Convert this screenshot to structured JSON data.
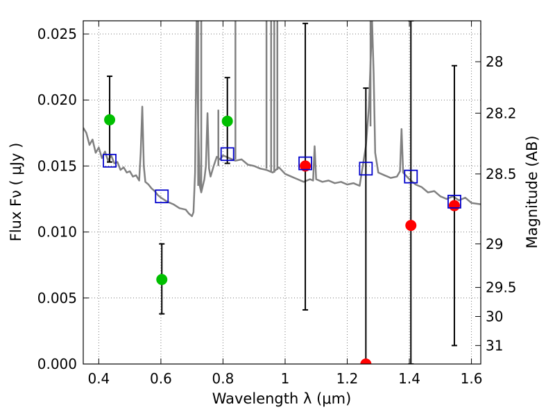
{
  "chart_data": {
    "type": "scatter",
    "title": "",
    "xlabel": "Wavelength  λ (μm)",
    "ylabel": "Flux  Fν  ( μJy )",
    "y2label": "Magnitude (AB)",
    "xlim": [
      0.35,
      1.63
    ],
    "ylim": [
      0,
      0.026
    ],
    "grid": true,
    "xticks": [
      0.4,
      0.6,
      0.8,
      1.0,
      1.2,
      1.4,
      1.6
    ],
    "xtick_labels": [
      "0.4",
      "0.6",
      "0.8",
      "1",
      "1.2",
      "1.4",
      "1.6"
    ],
    "yticks": [
      0,
      0.005,
      0.01,
      0.015,
      0.02,
      0.025
    ],
    "ytick_labels": [
      "0.000",
      "0.005",
      "0.010",
      "0.015",
      "0.020",
      "0.025"
    ],
    "y2ticks": [
      {
        "label": "28",
        "flux": 0.0229
      },
      {
        "label": "28.2",
        "flux": 0.019
      },
      {
        "label": "28.5",
        "flux": 0.0144
      },
      {
        "label": "29",
        "flux": 0.0091
      },
      {
        "label": "29.5",
        "flux": 0.0058
      },
      {
        "label": "30",
        "flux": 0.0036
      },
      {
        "label": "31",
        "flux": 0.0014
      }
    ],
    "colors": {
      "model": "#808080",
      "detected": "#00bf00",
      "upper_limit": "#ff0000",
      "model_band": "#0000cc",
      "errorbar": "#000000",
      "grid": "#777777"
    },
    "series": [
      {
        "name": "model spectrum",
        "type": "line",
        "x": [
          0.35,
          0.36,
          0.37,
          0.38,
          0.39,
          0.4,
          0.41,
          0.42,
          0.43,
          0.44,
          0.45,
          0.46,
          0.47,
          0.48,
          0.49,
          0.5,
          0.51,
          0.52,
          0.53,
          0.535,
          0.54,
          0.545,
          0.55,
          0.56,
          0.57,
          0.58,
          0.59,
          0.6,
          0.62,
          0.64,
          0.66,
          0.68,
          0.69,
          0.7,
          0.705,
          0.71,
          0.715,
          0.72,
          0.725,
          0.73,
          0.74,
          0.745,
          0.75,
          0.755,
          0.76,
          0.77,
          0.78,
          0.79,
          0.8,
          0.82,
          0.84,
          0.86,
          0.88,
          0.9,
          0.92,
          0.94,
          0.96,
          0.98,
          1.0,
          1.02,
          1.04,
          1.06,
          1.08,
          1.09,
          1.095,
          1.1,
          1.12,
          1.14,
          1.16,
          1.18,
          1.2,
          1.22,
          1.24,
          1.25,
          1.26,
          1.27,
          1.28,
          1.285,
          1.29,
          1.3,
          1.32,
          1.34,
          1.36,
          1.37,
          1.375,
          1.38,
          1.4,
          1.42,
          1.44,
          1.46,
          1.48,
          1.5,
          1.52,
          1.54,
          1.56,
          1.58,
          1.6,
          1.63
        ],
        "y": [
          0.0179,
          0.0175,
          0.0166,
          0.017,
          0.016,
          0.0164,
          0.0156,
          0.0161,
          0.0154,
          0.0158,
          0.0152,
          0.0153,
          0.0147,
          0.0149,
          0.0145,
          0.0146,
          0.0142,
          0.0143,
          0.0139,
          0.016,
          0.0195,
          0.015,
          0.0138,
          0.0136,
          0.0133,
          0.0131,
          0.0128,
          0.0126,
          0.0123,
          0.0121,
          0.0118,
          0.0117,
          0.0114,
          0.0112,
          0.0115,
          0.0145,
          0.026,
          0.018,
          0.0135,
          0.013,
          0.014,
          0.015,
          0.019,
          0.0148,
          0.0142,
          0.015,
          0.0157,
          0.0155,
          0.0158,
          0.0156,
          0.0154,
          0.0155,
          0.0151,
          0.015,
          0.0148,
          0.0147,
          0.0145,
          0.0149,
          0.0144,
          0.0142,
          0.014,
          0.0138,
          0.014,
          0.0139,
          0.0165,
          0.014,
          0.0138,
          0.0139,
          0.0137,
          0.0138,
          0.0136,
          0.0137,
          0.0135,
          0.015,
          0.0165,
          0.0195,
          0.026,
          0.022,
          0.016,
          0.0145,
          0.0143,
          0.0141,
          0.0142,
          0.0146,
          0.0178,
          0.0145,
          0.014,
          0.0136,
          0.0134,
          0.013,
          0.0131,
          0.0127,
          0.0125,
          0.0127,
          0.0124,
          0.0126,
          0.0122,
          0.0121
        ]
      },
      {
        "name": "model emission spikes",
        "type": "spikes",
        "lines": [
          {
            "x": 0.72,
            "base": 0.0135,
            "peak": 0.026
          },
          {
            "x": 0.73,
            "base": 0.013,
            "peak": 0.026
          },
          {
            "x": 0.785,
            "base": 0.015,
            "peak": 0.019
          },
          {
            "x": 0.84,
            "base": 0.0155,
            "peak": 0.026
          },
          {
            "x": 0.94,
            "base": 0.0148,
            "peak": 0.026
          },
          {
            "x": 0.955,
            "base": 0.0146,
            "peak": 0.026
          },
          {
            "x": 0.965,
            "base": 0.0145,
            "peak": 0.026
          },
          {
            "x": 0.975,
            "base": 0.0147,
            "peak": 0.026
          },
          {
            "x": 1.275,
            "base": 0.018,
            "peak": 0.026
          }
        ]
      },
      {
        "name": "model band flux",
        "type": "square-marker",
        "x": [
          0.435,
          0.603,
          0.814,
          1.065,
          1.26,
          1.405,
          1.545
        ],
        "y": [
          0.0154,
          0.0127,
          0.0159,
          0.0152,
          0.0148,
          0.0142,
          0.0123
        ]
      },
      {
        "name": "detected",
        "type": "circle-marker",
        "x": [
          0.435,
          0.603,
          0.814
        ],
        "y": [
          0.0185,
          0.0064,
          0.0184
        ],
        "yerr_low": [
          0.0153,
          0.0038,
          0.0152
        ],
        "yerr_high": [
          0.0218,
          0.0091,
          0.0217
        ]
      },
      {
        "name": "non-detection",
        "type": "circle-marker",
        "x": [
          1.065,
          1.26,
          1.405,
          1.545
        ],
        "y": [
          0.015,
          0.0,
          0.0105,
          0.012
        ],
        "yerr_low": [
          0.0041,
          0.0,
          0.0,
          0.0014
        ],
        "yerr_high": [
          0.0258,
          0.0209,
          0.026,
          0.0226
        ]
      }
    ]
  }
}
